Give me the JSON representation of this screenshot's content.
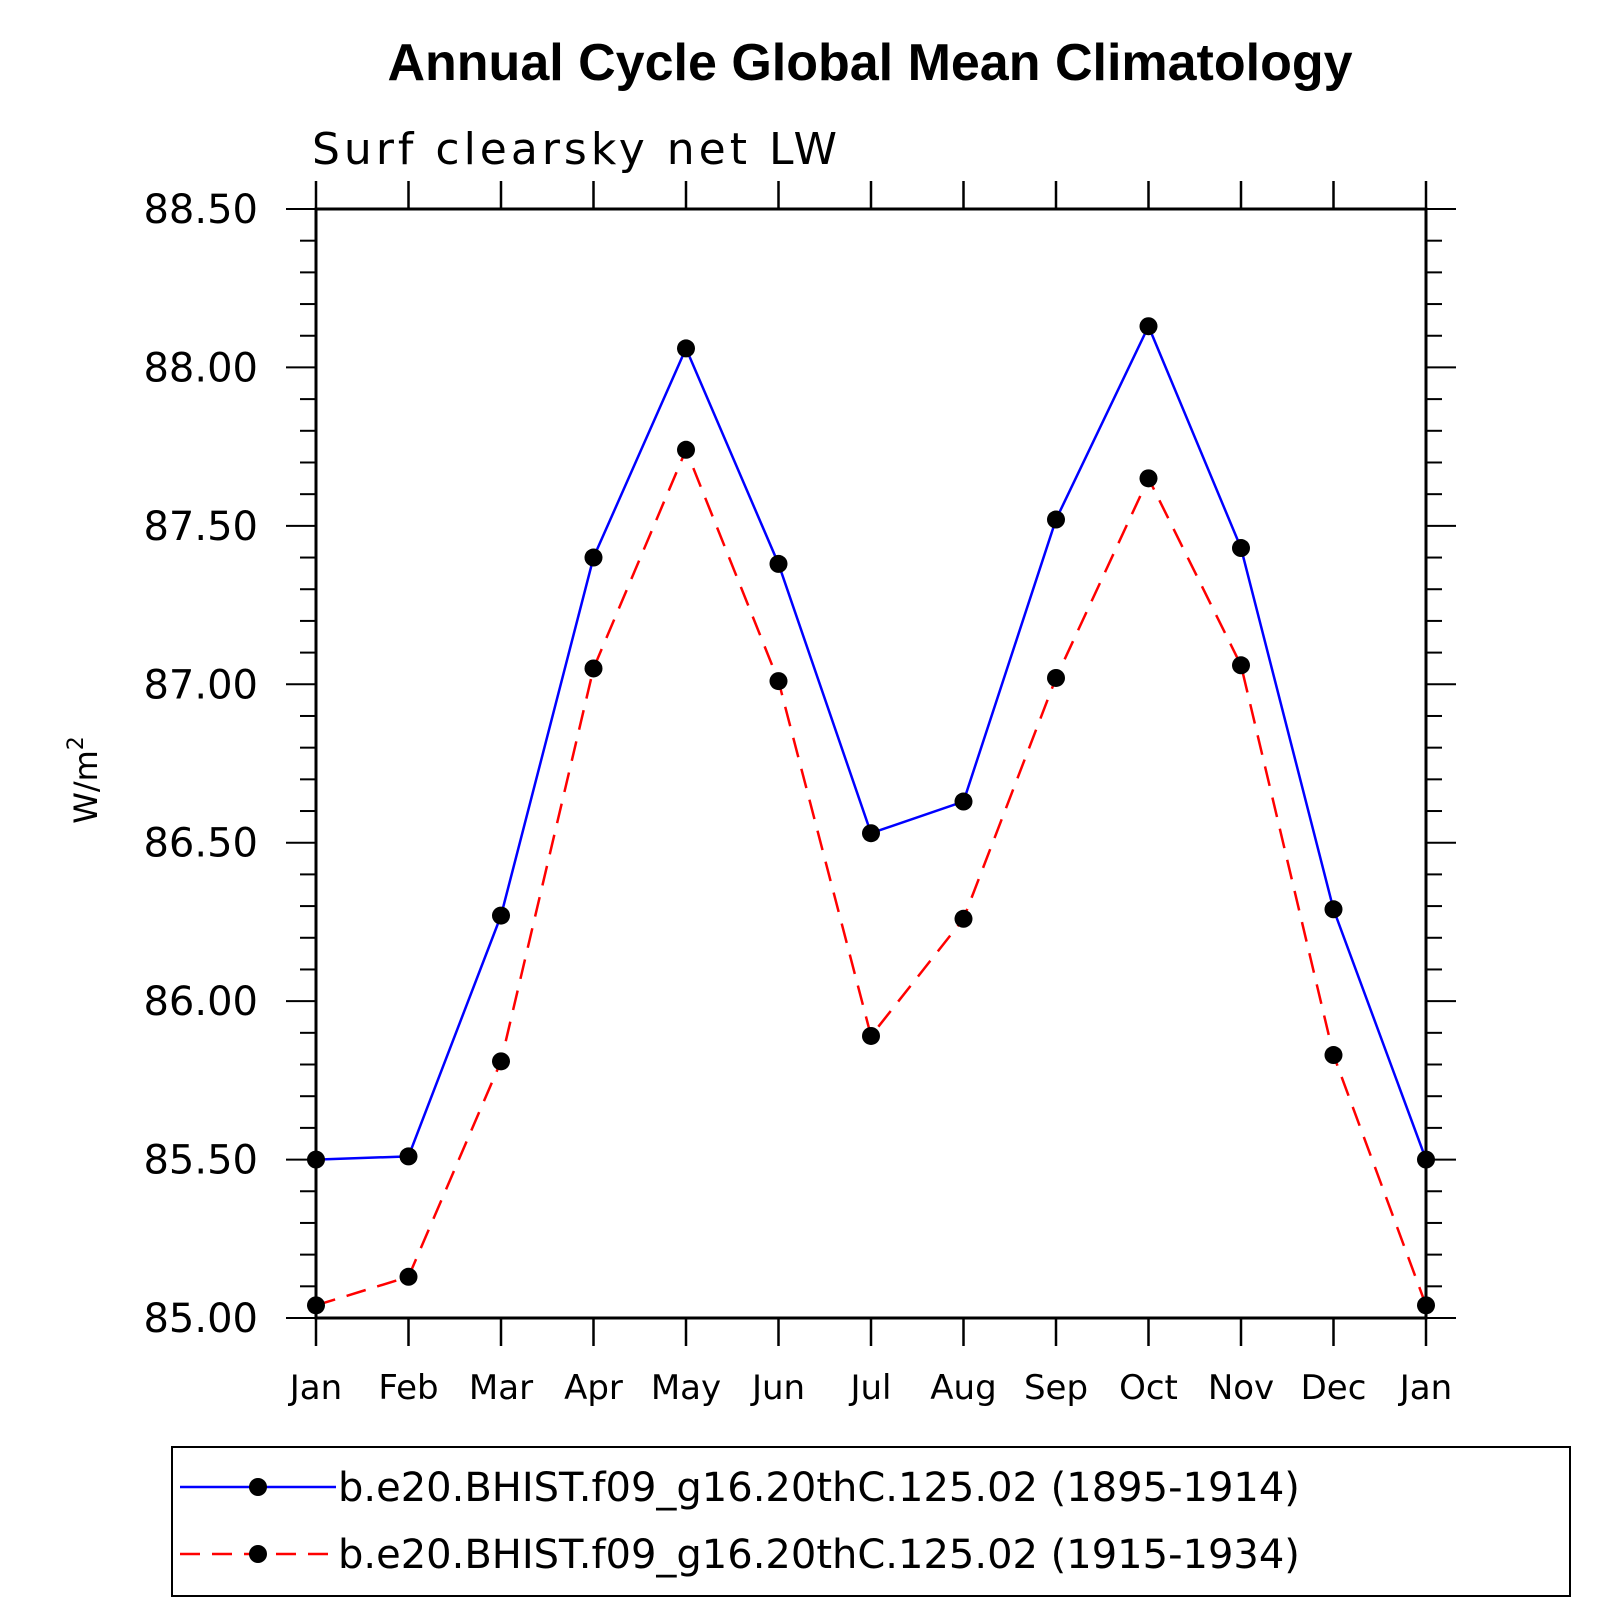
{
  "chart_data": {
    "type": "line",
    "title": "Annual Cycle Global Mean Climatology",
    "subtitle": "Surf clearsky net LW",
    "ylabel": "W/m",
    "ylabel_superscript": "2",
    "xlabel": "",
    "categories": [
      "Jan",
      "Feb",
      "Mar",
      "Apr",
      "May",
      "Jun",
      "Jul",
      "Aug",
      "Sep",
      "Oct",
      "Nov",
      "Dec",
      "Jan"
    ],
    "ylim": [
      85.0,
      88.5
    ],
    "yticks": [
      "85.00",
      "85.50",
      "86.00",
      "86.50",
      "87.00",
      "87.50",
      "88.00",
      "88.50"
    ],
    "series": [
      {
        "name": "b.e20.BHIST.f09_g16.20thC.125.02 (1895-1914)",
        "color": "#0000ff",
        "dash": "solid",
        "values": [
          85.5,
          85.51,
          86.27,
          87.4,
          88.06,
          87.38,
          86.53,
          86.63,
          87.52,
          88.13,
          87.43,
          86.29,
          85.5
        ]
      },
      {
        "name": "b.e20.BHIST.f09_g16.20thC.125.02 (1915-1934)",
        "color": "#ff0000",
        "dash": "dashed",
        "values": [
          85.04,
          85.13,
          85.81,
          87.05,
          87.74,
          87.01,
          85.89,
          86.26,
          87.02,
          87.65,
          87.06,
          85.83,
          85.04
        ]
      }
    ],
    "marker_color": "#000000",
    "legend": "bottom",
    "grid": false
  }
}
